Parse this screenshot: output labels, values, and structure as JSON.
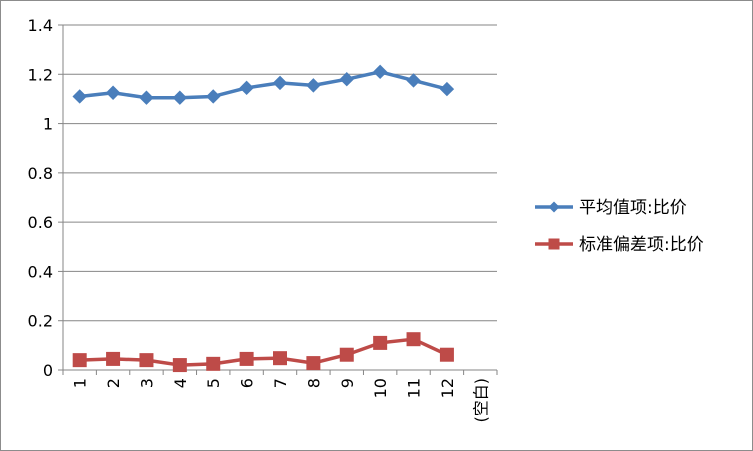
{
  "chart_data": {
    "type": "line",
    "categories": [
      "1",
      "2",
      "3",
      "4",
      "5",
      "6",
      "7",
      "8",
      "9",
      "10",
      "11",
      "12",
      "(空白)"
    ],
    "series": [
      {
        "name": "平均值项:比价",
        "values": [
          1.11,
          1.125,
          1.105,
          1.105,
          1.11,
          1.145,
          1.165,
          1.155,
          1.18,
          1.21,
          1.175,
          1.14,
          null
        ],
        "color": "#4a7ebb",
        "marker": "diamond"
      },
      {
        "name": "标准偏差项:比价",
        "values": [
          0.04,
          0.045,
          0.04,
          0.02,
          0.025,
          0.045,
          0.048,
          0.028,
          0.062,
          0.11,
          0.125,
          0.062,
          null
        ],
        "color": "#be4b48",
        "marker": "square"
      }
    ],
    "y_ticks": [
      "0",
      "0.2",
      "0.4",
      "0.6",
      "0.8",
      "1",
      "1.2",
      "1.4"
    ],
    "ylim": [
      0,
      1.4
    ],
    "grid": true,
    "legend_position": "right",
    "title": "",
    "xlabel": "",
    "ylabel": ""
  }
}
